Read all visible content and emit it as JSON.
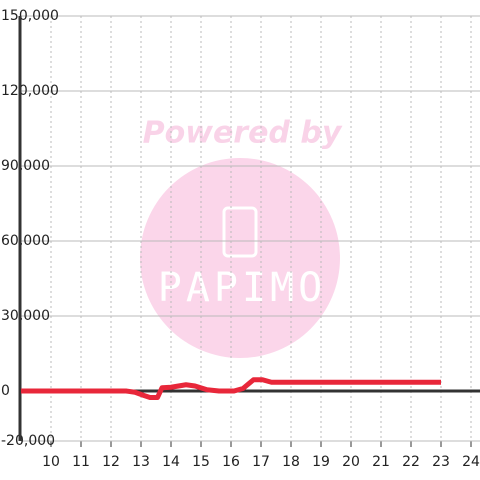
{
  "chart_data": {
    "type": "line",
    "watermark": [
      "Powered by",
      "PAPIMO"
    ],
    "x": [
      9,
      12.5,
      12.8,
      13.1,
      13.3,
      13.55,
      13.7,
      14.0,
      14.5,
      14.8,
      15.2,
      15.6,
      16.1,
      16.4,
      16.75,
      17.05,
      17.35,
      18,
      20,
      23
    ],
    "series": [
      {
        "color": "#e8273a",
        "values": [
          0,
          0,
          -500,
          -1800,
          -2600,
          -2600,
          1300,
          1500,
          2500,
          2000,
          500,
          0,
          0,
          1000,
          4500,
          4500,
          3500,
          3500,
          3500,
          3500
        ]
      }
    ],
    "xlim": [
      9,
      24.3
    ],
    "xticks": [
      10,
      11,
      12,
      13,
      14,
      15,
      16,
      17,
      18,
      19,
      20,
      21,
      22,
      23,
      24
    ],
    "ylim": [
      -20000,
      150000
    ],
    "yticks": [
      {
        "value": -20000,
        "label": "-20,000"
      },
      0,
      {
        "value": 30000,
        "label": "30,000"
      },
      {
        "value": 60000,
        "label": "60,000"
      },
      {
        "value": 90000,
        "label": "90,000"
      },
      {
        "value": 120000,
        "label": "120,000"
      },
      {
        "value": 150000,
        "label": "150,000"
      }
    ],
    "grid": true
  }
}
